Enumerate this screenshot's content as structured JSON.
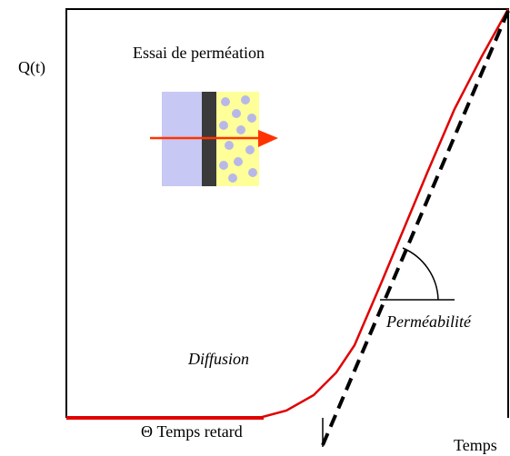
{
  "labels": {
    "y_axis": "Q(t)",
    "title": "Essai de perméation",
    "slope": "Perméabilité",
    "diffusion": "Diffusion",
    "lag_time": "Θ Temps retard",
    "x_axis": "Temps"
  }
}
